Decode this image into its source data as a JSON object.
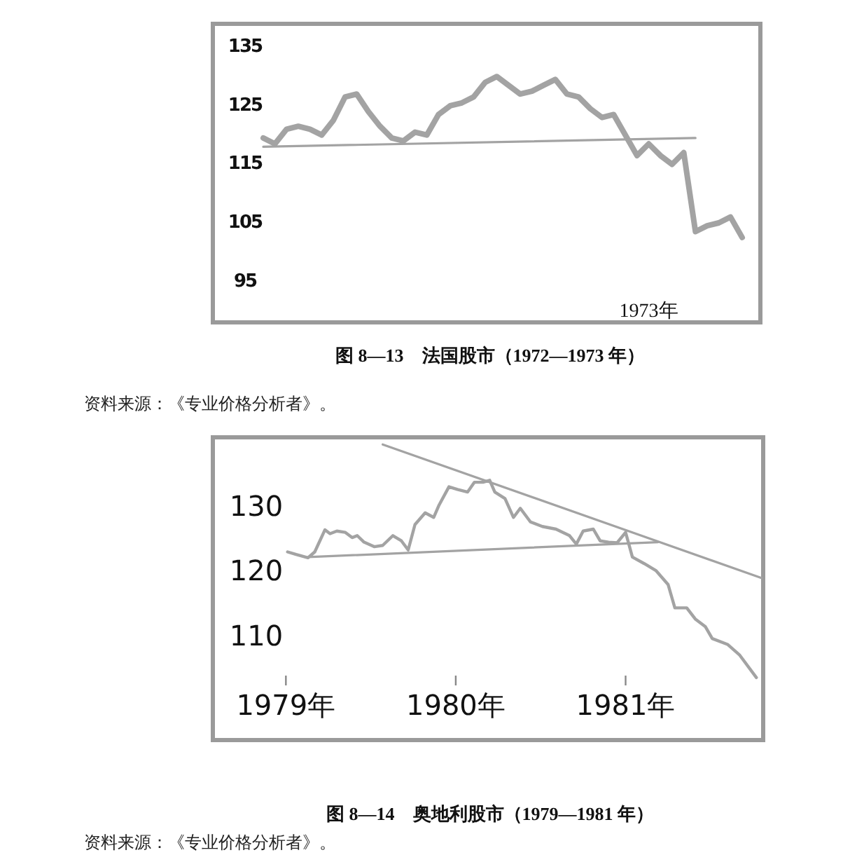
{
  "chart_data": [
    {
      "type": "line",
      "title": "图 8—13　法国股市（1972—1973 年）",
      "categories": [
        null,
        null,
        null,
        null,
        null,
        null,
        null,
        null,
        null,
        null,
        null,
        null,
        null,
        null,
        null,
        null,
        null,
        null,
        null,
        null,
        null,
        null,
        null,
        null,
        null,
        null,
        null,
        null,
        null,
        null,
        null,
        null,
        null,
        "1973年",
        null,
        null,
        null,
        null,
        null,
        null,
        null,
        null
      ],
      "series": [
        {
          "color": "#a3a3a3",
          "values": [
            119.5,
            118.5,
            121,
            121.5,
            121,
            120,
            122.5,
            126.5,
            127,
            124,
            121.5,
            119.5,
            119,
            120.5,
            120,
            123.5,
            125,
            125.5,
            126.5,
            129,
            130,
            128.5,
            127,
            127.5,
            128.5,
            129.5,
            127,
            126.5,
            124.5,
            123,
            123.5,
            120,
            116.5,
            118.5,
            116.5,
            115,
            117,
            103.5,
            104.5,
            105,
            106,
            102.5
          ]
        },
        {
          "color": "#a3a3a3",
          "values": [
            118,
            null,
            null,
            null,
            null,
            null,
            null,
            null,
            null,
            null,
            null,
            null,
            null,
            null,
            null,
            null,
            null,
            null,
            null,
            null,
            null,
            null,
            null,
            null,
            null,
            null,
            null,
            null,
            null,
            null,
            null,
            null,
            null,
            null,
            null,
            null,
            null,
            119.5,
            null,
            null,
            null,
            null
          ]
        }
      ],
      "ylim": [
        88,
        139
      ],
      "yticks": [
        95,
        105,
        115,
        125,
        135
      ],
      "annotations": [
        "资料来源：《专业价格分析者》。"
      ]
    },
    {
      "type": "line",
      "title": "图 8—14　奥地利股市（1979—1981 年）",
      "series": [
        {
          "color": "#a3a3a3",
          "x": [
            1979.01,
            1979.06,
            1979.13,
            1979.17,
            1979.23,
            1979.26,
            1979.3,
            1979.35,
            1979.39,
            1979.42,
            1979.46,
            1979.52,
            1979.57,
            1979.63,
            1979.68,
            1979.72,
            1979.76,
            1979.82,
            1979.87,
            1979.9,
            1979.96,
            1980.01,
            1980.07,
            1980.11,
            1980.16,
            1980.2,
            1980.23,
            1980.29,
            1980.34,
            1980.38,
            1980.44,
            1980.51,
            1980.59,
            1980.67,
            1980.71,
            1980.75,
            1980.81,
            1980.85,
            1980.9,
            1980.95,
            1981,
            1981.04,
            1981.11,
            1981.18,
            1981.25,
            1981.29,
            1981.36,
            1981.41,
            1981.47,
            1981.51,
            1981.6,
            1981.67,
            1981.77
          ],
          "values": [
            122.9,
            122.5,
            122,
            122.9,
            126.3,
            125.7,
            126.1,
            125.9,
            125.1,
            125.4,
            124.4,
            123.7,
            123.9,
            125.4,
            124.6,
            123.2,
            127.1,
            128.9,
            128.2,
            130,
            132.9,
            132.5,
            132.1,
            133.6,
            133.6,
            133.9,
            132.1,
            131.1,
            128.2,
            129.6,
            127.5,
            126.8,
            126.4,
            125.4,
            124.1,
            126.1,
            126.4,
            124.6,
            124.4,
            124.3,
            125.9,
            122.1,
            121.1,
            120,
            117.9,
            114.3,
            114.3,
            112.6,
            111.4,
            109.6,
            108.7,
            107.1,
            103.6
          ]
        },
        {
          "color": "#a3a3a3",
          "x": [
            1979.13,
            1981.19
          ],
          "values": [
            122.1,
            124.4
          ]
        },
        {
          "color": "#a3a3a3",
          "x": [
            1979.57,
            1981.8
          ],
          "values": [
            139.4,
            118.9
          ]
        }
      ],
      "xlim": [
        1978.57,
        1981.81
      ],
      "xticks": [
        {
          "value": 1979,
          "label": "1979年"
        },
        {
          "value": 1980,
          "label": "1980年"
        },
        {
          "value": 1981,
          "label": "1981年"
        }
      ],
      "ylim": [
        94,
        140.5
      ],
      "yticks": [
        110,
        120,
        130
      ],
      "annotations": [
        "资料来源：《专业价格分析者》。"
      ]
    }
  ]
}
